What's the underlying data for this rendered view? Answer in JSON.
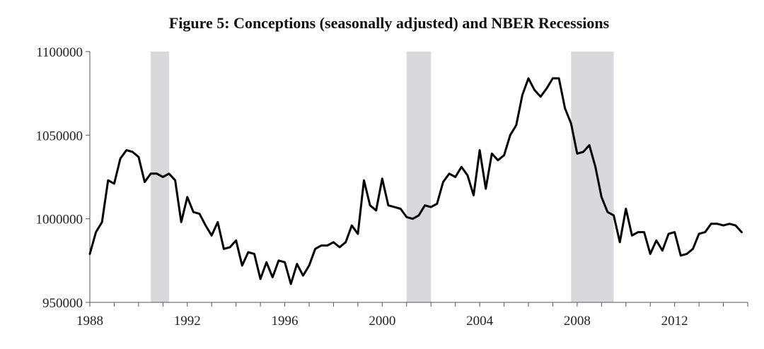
{
  "chart_data": {
    "type": "line",
    "title": "Figure 5: Conceptions (seasonally adjusted) and NBER Recessions",
    "xlabel": "",
    "ylabel": "",
    "xlim": [
      1988,
      2015
    ],
    "ylim": [
      950000,
      1100000
    ],
    "x_ticks": [
      1988,
      1992,
      1996,
      2000,
      2004,
      2008,
      2012
    ],
    "x_tick_labels": [
      "1988",
      "1992",
      "1996",
      "2000",
      "2004",
      "2008",
      "2012"
    ],
    "y_ticks": [
      950000,
      1000000,
      1050000,
      1100000
    ],
    "y_tick_labels": [
      "950000",
      "1000000",
      "1050000",
      "1100000"
    ],
    "grid": false,
    "recessions": [
      {
        "start": 1990.5,
        "end": 1991.25
      },
      {
        "start": 2001.0,
        "end": 2002.0
      },
      {
        "start": 2007.75,
        "end": 2009.5
      }
    ],
    "series": [
      {
        "name": "",
        "color": "#000000",
        "points": [
          [
            1988.0,
            979000
          ],
          [
            1988.25,
            992000
          ],
          [
            1988.5,
            998000
          ],
          [
            1988.75,
            1023000
          ],
          [
            1989.0,
            1021000
          ],
          [
            1989.25,
            1036000
          ],
          [
            1989.5,
            1041000
          ],
          [
            1989.75,
            1040000
          ],
          [
            1990.0,
            1037000
          ],
          [
            1990.25,
            1022000
          ],
          [
            1990.5,
            1027000
          ],
          [
            1990.75,
            1027000
          ],
          [
            1991.0,
            1025000
          ],
          [
            1991.25,
            1027000
          ],
          [
            1991.5,
            1023000
          ],
          [
            1991.75,
            998000
          ],
          [
            1992.0,
            1013000
          ],
          [
            1992.25,
            1004000
          ],
          [
            1992.5,
            1003000
          ],
          [
            1992.75,
            996000
          ],
          [
            1993.0,
            990000
          ],
          [
            1993.25,
            998000
          ],
          [
            1993.5,
            982000
          ],
          [
            1993.75,
            983000
          ],
          [
            1994.0,
            987000
          ],
          [
            1994.25,
            972000
          ],
          [
            1994.5,
            980000
          ],
          [
            1994.75,
            979000
          ],
          [
            1995.0,
            964000
          ],
          [
            1995.25,
            974000
          ],
          [
            1995.5,
            965000
          ],
          [
            1995.75,
            975000
          ],
          [
            1996.0,
            974000
          ],
          [
            1996.25,
            961000
          ],
          [
            1996.5,
            973000
          ],
          [
            1996.75,
            966000
          ],
          [
            1997.0,
            972000
          ],
          [
            1997.25,
            982000
          ],
          [
            1997.5,
            984000
          ],
          [
            1997.75,
            984000
          ],
          [
            1998.0,
            986000
          ],
          [
            1998.25,
            983000
          ],
          [
            1998.5,
            986000
          ],
          [
            1998.75,
            996000
          ],
          [
            1999.0,
            991000
          ],
          [
            1999.25,
            1023000
          ],
          [
            1999.5,
            1008000
          ],
          [
            1999.75,
            1005000
          ],
          [
            2000.0,
            1024000
          ],
          [
            2000.25,
            1008000
          ],
          [
            2000.5,
            1007000
          ],
          [
            2000.75,
            1006000
          ],
          [
            2001.0,
            1001000
          ],
          [
            2001.25,
            1000000
          ],
          [
            2001.5,
            1002000
          ],
          [
            2001.75,
            1008000
          ],
          [
            2002.0,
            1007000
          ],
          [
            2002.25,
            1009000
          ],
          [
            2002.5,
            1022000
          ],
          [
            2002.75,
            1027000
          ],
          [
            2003.0,
            1025000
          ],
          [
            2003.25,
            1031000
          ],
          [
            2003.5,
            1026000
          ],
          [
            2003.75,
            1014000
          ],
          [
            2004.0,
            1041000
          ],
          [
            2004.25,
            1018000
          ],
          [
            2004.5,
            1039000
          ],
          [
            2004.75,
            1035000
          ],
          [
            2005.0,
            1038000
          ],
          [
            2005.25,
            1050000
          ],
          [
            2005.5,
            1056000
          ],
          [
            2005.75,
            1074000
          ],
          [
            2006.0,
            1084000
          ],
          [
            2006.25,
            1077000
          ],
          [
            2006.5,
            1073000
          ],
          [
            2006.75,
            1078000
          ],
          [
            2007.0,
            1084000
          ],
          [
            2007.25,
            1084000
          ],
          [
            2007.5,
            1066000
          ],
          [
            2007.75,
            1057000
          ],
          [
            2008.0,
            1039000
          ],
          [
            2008.25,
            1040000
          ],
          [
            2008.5,
            1044000
          ],
          [
            2008.75,
            1031000
          ],
          [
            2009.0,
            1013000
          ],
          [
            2009.25,
            1004000
          ],
          [
            2009.5,
            1002000
          ],
          [
            2009.75,
            986000
          ],
          [
            2010.0,
            1006000
          ],
          [
            2010.25,
            990000
          ],
          [
            2010.5,
            992000
          ],
          [
            2010.75,
            992000
          ],
          [
            2011.0,
            979000
          ],
          [
            2011.25,
            987000
          ],
          [
            2011.5,
            981000
          ],
          [
            2011.75,
            991000
          ],
          [
            2012.0,
            992000
          ],
          [
            2012.25,
            978000
          ],
          [
            2012.5,
            979000
          ],
          [
            2012.75,
            982000
          ],
          [
            2013.0,
            991000
          ],
          [
            2013.25,
            992000
          ],
          [
            2013.5,
            997000
          ],
          [
            2013.75,
            997000
          ],
          [
            2014.0,
            996000
          ],
          [
            2014.25,
            997000
          ],
          [
            2014.5,
            996000
          ],
          [
            2014.75,
            992000
          ]
        ]
      }
    ]
  }
}
